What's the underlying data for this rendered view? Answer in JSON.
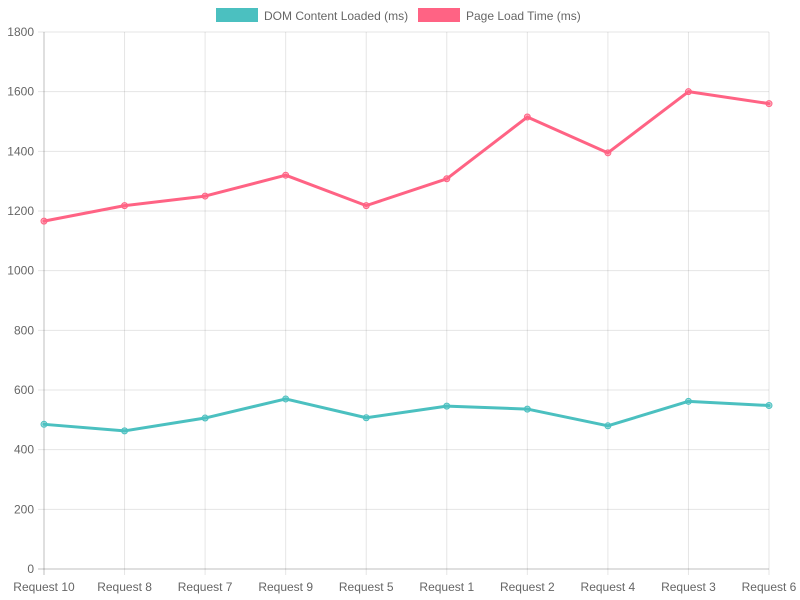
{
  "chart_data": {
    "type": "line",
    "categories": [
      "Request 10",
      "Request 8",
      "Request 7",
      "Request 9",
      "Request 5",
      "Request 1",
      "Request 2",
      "Request 4",
      "Request 3",
      "Request 6"
    ],
    "series": [
      {
        "name": "DOM Content Loaded (ms)",
        "color": "#4bc0c0",
        "values": [
          485,
          463,
          506,
          570,
          507,
          546,
          536,
          480,
          562,
          548
        ]
      },
      {
        "name": "Page Load Time (ms)",
        "color": "#ff6384",
        "values": [
          1166,
          1218,
          1250,
          1320,
          1218,
          1308,
          1515,
          1395,
          1600,
          1560
        ]
      }
    ],
    "ylim": [
      0,
      1800
    ],
    "yticks": [
      0,
      200,
      400,
      600,
      800,
      1000,
      1200,
      1400,
      1600,
      1800
    ],
    "grid": true,
    "legend_position": "top"
  }
}
